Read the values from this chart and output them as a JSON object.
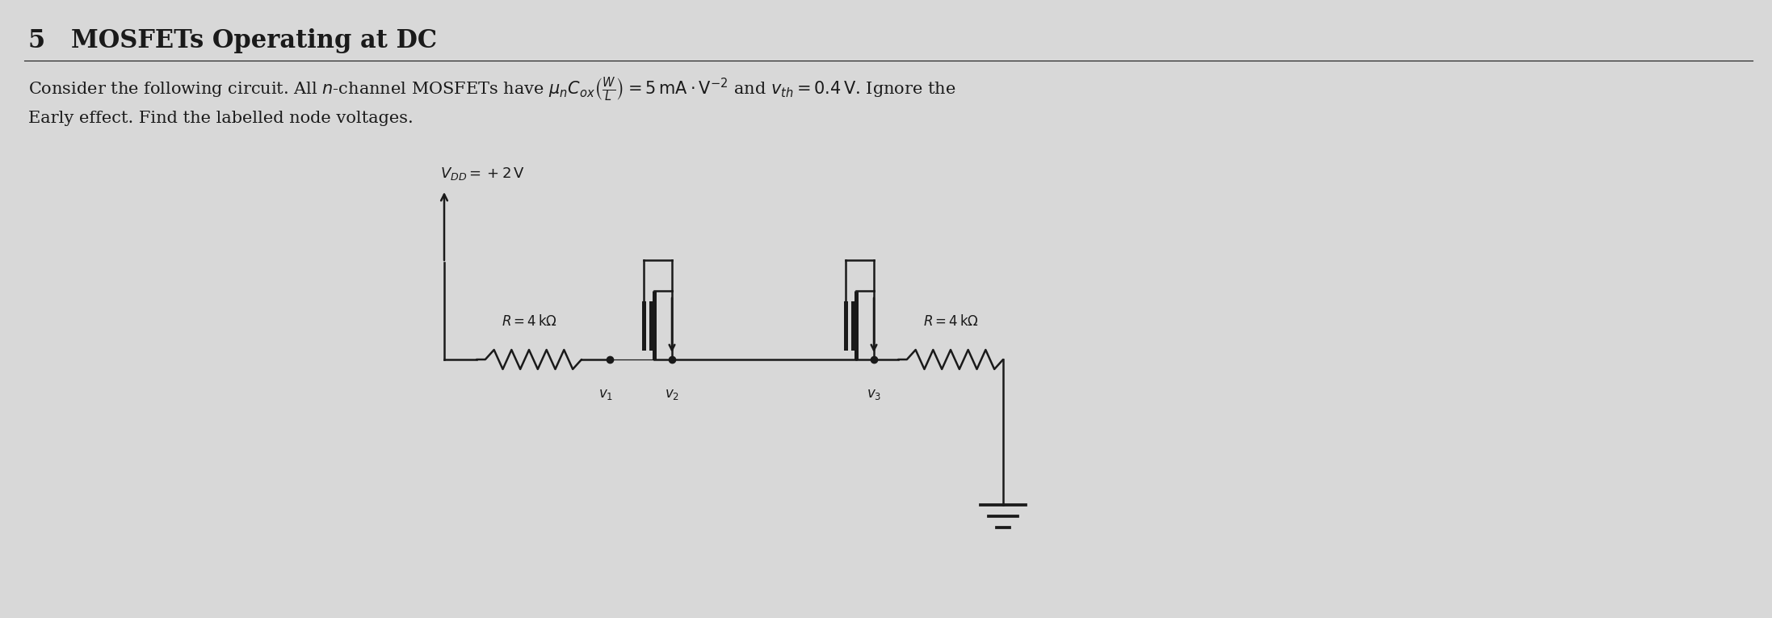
{
  "title": "5   MOSFETs Operating at DC",
  "body_line1": "Consider the following circuit. All $n$-channel MOSFETs have $\\mu_n C_{ox} \\left(\\frac{W}{L}\\right) = 5\\,\\mathrm{mA}\\cdot\\mathrm{V}^{-2}$ and $v_{th} = 0.4\\,\\mathrm{V}$. Ignore the",
  "body_line2": "Early effect. Find the labelled node voltages.",
  "vdd_label": "$V_{DD} = +2\\,\\mathrm{V}$",
  "R_left_label": "$R = 4\\,\\mathrm{k}\\Omega$",
  "R_right_label": "$R = 4\\,\\mathrm{k}\\Omega$",
  "v1_label": "$v_1$",
  "v2_label": "$v_2$",
  "v3_label": "$v_3$",
  "bg_color": "#d8d8d8",
  "fg_color": "#1a1a1a",
  "line_width": 1.8,
  "title_fontsize": 22,
  "body_fontsize": 15
}
